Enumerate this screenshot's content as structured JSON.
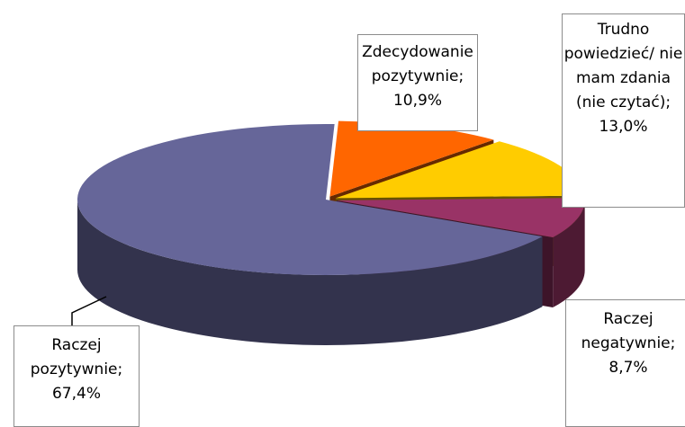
{
  "chart_data": {
    "type": "pie3d",
    "categories": [
      "Zdecydowanie pozytywnie",
      "Trudno powiedzieć/ nie mam zdania (nie czytać)",
      "Raczej negatywnie",
      "Raczej pozytywnie"
    ],
    "values": [
      10.9,
      13.0,
      8.7,
      67.4
    ],
    "value_labels": [
      "10,9%",
      "13,0%",
      "8,7%",
      "67,4%"
    ],
    "label_separator": ";",
    "colors": [
      "#ff6600",
      "#ffcc00",
      "#993366",
      "#666699"
    ]
  }
}
